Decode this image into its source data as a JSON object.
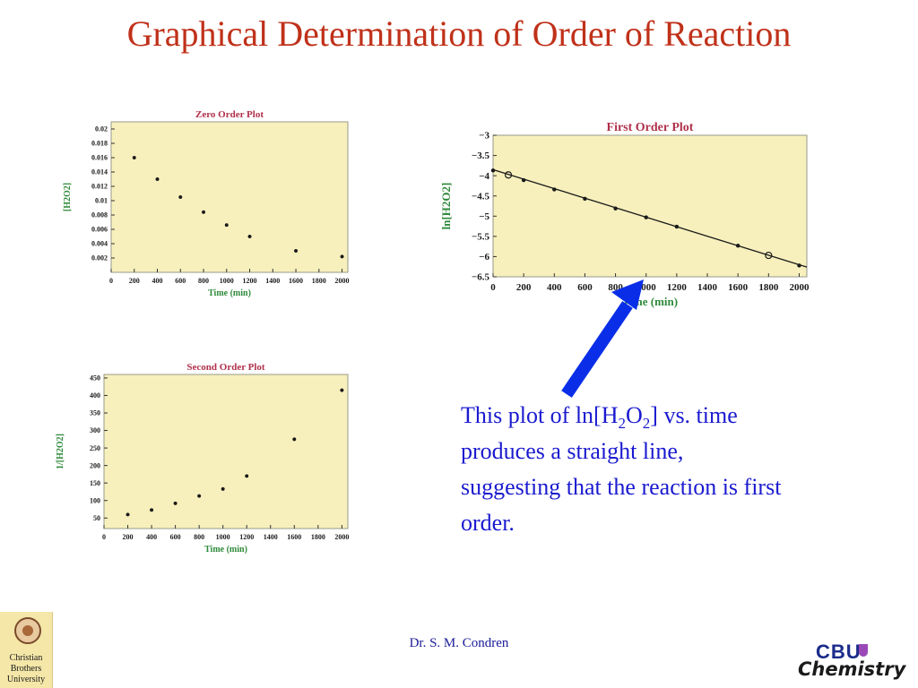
{
  "slide": {
    "title": "Graphical Determination of Order of Reaction",
    "caption_parts": [
      "This plot of ln[H",
      "2",
      "O",
      "2",
      "] vs. time produces a straight line, suggesting that the reaction is first order."
    ],
    "footer": "Dr. S. M. Condren",
    "logo_left": [
      "Christian",
      "Brothers",
      "University"
    ],
    "logo_right": {
      "top": "CBU",
      "bottom": "Chemistry"
    },
    "arrow_color": "#0a2ee8"
  },
  "chart_data": [
    {
      "type": "scatter",
      "title": "Zero Order Plot",
      "xlabel": "Time (min)",
      "ylabel": "[H2O2]",
      "xticks": [
        0,
        200,
        400,
        600,
        800,
        1000,
        1200,
        1400,
        1600,
        1800,
        2000
      ],
      "yticks": [
        0.002,
        0.004,
        0.006,
        0.008,
        0.01,
        0.012,
        0.014,
        0.016,
        0.018,
        0.02
      ],
      "ytick_labels": [
        "0.002",
        "0.004",
        "0.006",
        "0.008",
        "0.01",
        "0.012",
        "0.014",
        "0.016",
        "0.018",
        "0.02"
      ],
      "xlim": [
        0,
        2050
      ],
      "ylim": [
        0,
        0.021
      ],
      "x": [
        200,
        400,
        600,
        800,
        1000,
        1200,
        1600,
        2000
      ],
      "y": [
        0.016,
        0.013,
        0.0105,
        0.0084,
        0.0066,
        0.005,
        0.003,
        0.0022
      ],
      "colors": {
        "bg": "#f7f0bc",
        "title": "#b0304a",
        "label": "#2e8a3a",
        "point": "#1a1a1a"
      }
    },
    {
      "type": "line",
      "title": "First Order Plot",
      "xlabel": "Time (min)",
      "ylabel": "ln[H2O2]",
      "xticks": [
        0,
        200,
        400,
        600,
        800,
        1000,
        1200,
        1400,
        1600,
        1800,
        2000
      ],
      "yticks": [
        -3,
        -3.5,
        -4,
        -4.5,
        -5,
        -5.5,
        -6,
        -6.5
      ],
      "ytick_labels": [
        "−3",
        "−3.5",
        "−4",
        "−4.5",
        "−5",
        "−5.5",
        "−6",
        "−6.5"
      ],
      "xlim": [
        0,
        2050
      ],
      "ylim": [
        -6.5,
        -3
      ],
      "x": [
        0,
        100,
        200,
        400,
        600,
        800,
        1000,
        1200,
        1600,
        1800,
        2000
      ],
      "y": [
        -3.87,
        -3.98,
        -4.11,
        -4.34,
        -4.57,
        -4.81,
        -5.03,
        -5.26,
        -5.73,
        -5.97,
        -6.22
      ],
      "line": {
        "x": [
          0,
          2050
        ],
        "y": [
          -3.85,
          -6.26
        ]
      },
      "open_points_index": [
        1,
        9
      ],
      "colors": {
        "bg": "#f7f0bc",
        "title": "#b0304a",
        "label": "#2e8a3a",
        "point": "#1a1a1a"
      }
    },
    {
      "type": "scatter",
      "title": "Second Order Plot",
      "xlabel": "Time (min)",
      "ylabel": "1/[H2O2]",
      "xticks": [
        0,
        200,
        400,
        600,
        800,
        1000,
        1200,
        1400,
        1600,
        1800,
        2000
      ],
      "yticks": [
        50,
        100,
        150,
        200,
        250,
        300,
        350,
        400,
        450
      ],
      "ytick_labels": [
        "50",
        "100",
        "150",
        "200",
        "250",
        "300",
        "350",
        "400",
        "450"
      ],
      "xlim": [
        0,
        2050
      ],
      "ylim": [
        20,
        460
      ],
      "x": [
        200,
        400,
        600,
        800,
        1000,
        1200,
        1600,
        2000
      ],
      "y": [
        60,
        73,
        92,
        113,
        133,
        170,
        275,
        415
      ],
      "colors": {
        "bg": "#f7f0bc",
        "title": "#b0304a",
        "label": "#2e8a3a",
        "point": "#1a1a1a"
      }
    }
  ]
}
